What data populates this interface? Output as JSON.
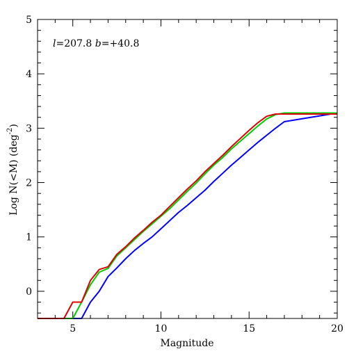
{
  "chart_data": {
    "type": "line",
    "annotation": {
      "l_symbol": "l",
      "l_value": "=207.8",
      "b_symbol": "b",
      "b_value": "=+40.8"
    },
    "xlabel": "Magnitude",
    "ylabel": "Log N(<M) (deg",
    "ylabel_sup": "-2",
    "ylabel_end": ")",
    "xlim": [
      3,
      20
    ],
    "ylim": [
      -0.5,
      5
    ],
    "x_major_ticks": [
      5,
      10,
      15,
      20
    ],
    "y_major_ticks": [
      0,
      1,
      2,
      3,
      4,
      5
    ],
    "x_tick_labels": [
      "5",
      "10",
      "15",
      "20"
    ],
    "y_tick_labels": [
      "0",
      "1",
      "2",
      "3",
      "4",
      "5"
    ],
    "grid": false,
    "series": [
      {
        "color": "#0000ff",
        "x": [
          5.0,
          5.5,
          6.0,
          6.5,
          7.0,
          7.5,
          8.0,
          8.5,
          9.0,
          9.5,
          10.0,
          10.5,
          11.0,
          11.5,
          12.0,
          12.5,
          13.0,
          13.5,
          14.0,
          14.5,
          15.0,
          15.5,
          16.0,
          16.5,
          17.0,
          20.0
        ],
        "y": [
          -0.5,
          -0.5,
          -0.2,
          0.0,
          0.27,
          0.43,
          0.6,
          0.75,
          0.88,
          1.0,
          1.15,
          1.3,
          1.45,
          1.58,
          1.72,
          1.86,
          2.02,
          2.17,
          2.32,
          2.46,
          2.6,
          2.74,
          2.87,
          3.0,
          3.12,
          3.28
        ],
        "x_extra_note": ""
      },
      {
        "color": "#00cc00",
        "x": [
          4.5,
          5.0,
          5.5,
          6.0,
          6.5,
          7.0,
          7.5,
          8.0,
          8.5,
          9.0,
          9.5,
          10.0,
          10.5,
          11.0,
          11.5,
          12.0,
          12.5,
          13.0,
          13.5,
          14.0,
          14.5,
          15.0,
          15.5,
          16.0,
          16.5,
          17.0,
          20.0
        ],
        "y": [
          -0.5,
          -0.5,
          -0.2,
          0.12,
          0.35,
          0.42,
          0.65,
          0.8,
          0.95,
          1.1,
          1.24,
          1.38,
          1.52,
          1.68,
          1.84,
          1.99,
          2.16,
          2.32,
          2.46,
          2.62,
          2.76,
          2.9,
          3.04,
          3.17,
          3.25,
          3.28,
          3.28
        ]
      },
      {
        "color": "#dd0000",
        "x": [
          3.0,
          4.5,
          5.0,
          5.5,
          6.0,
          6.5,
          7.0,
          7.5,
          8.0,
          8.5,
          9.0,
          9.5,
          10.0,
          10.5,
          11.0,
          11.5,
          12.0,
          12.5,
          13.0,
          13.5,
          14.0,
          14.5,
          15.0,
          15.5,
          16.0,
          16.5,
          17.0,
          20.0
        ],
        "y": [
          -0.5,
          -0.5,
          -0.2,
          -0.2,
          0.2,
          0.4,
          0.45,
          0.68,
          0.82,
          0.98,
          1.12,
          1.27,
          1.4,
          1.56,
          1.72,
          1.88,
          2.03,
          2.2,
          2.35,
          2.5,
          2.66,
          2.81,
          2.96,
          3.1,
          3.22,
          3.26,
          3.26,
          3.26
        ]
      }
    ]
  }
}
